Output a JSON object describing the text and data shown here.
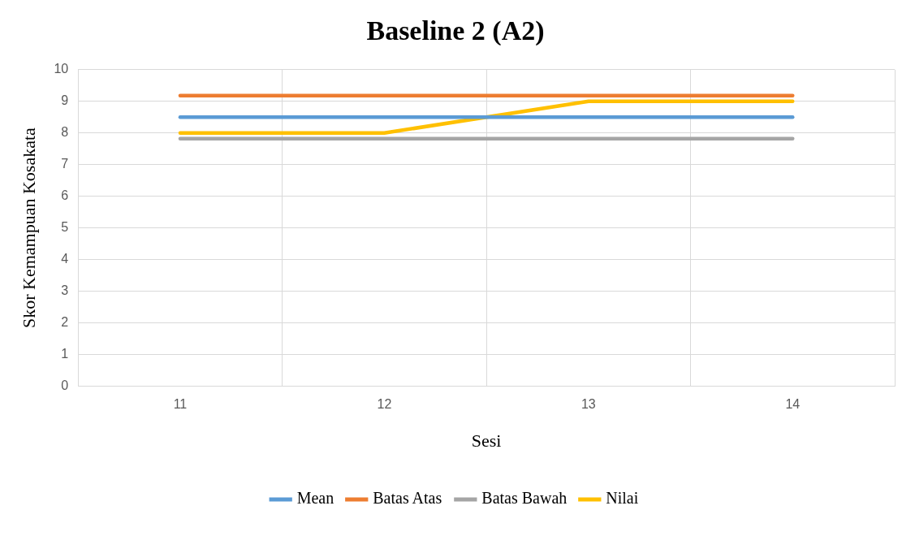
{
  "chart_data": {
    "type": "line",
    "title": "Baseline 2 (A2)",
    "xlabel": "Sesi",
    "ylabel": "Skor Kemampuan Kosakata",
    "categories": [
      "11",
      "12",
      "13",
      "14"
    ],
    "series": [
      {
        "name": "Mean",
        "color": "#5b9bd5",
        "values": [
          8.5,
          8.5,
          8.5,
          8.5
        ]
      },
      {
        "name": "Batas Atas",
        "color": "#ed7d31",
        "values": [
          9.18,
          9.18,
          9.18,
          9.18
        ]
      },
      {
        "name": "Batas Bawah",
        "color": "#a5a5a5",
        "values": [
          7.82,
          7.82,
          7.82,
          7.82
        ]
      },
      {
        "name": "Nilai",
        "color": "#ffc000",
        "values": [
          8,
          8,
          9,
          9
        ]
      }
    ],
    "ylim": [
      0,
      10
    ],
    "yticks": [
      0,
      1,
      2,
      3,
      4,
      5,
      6,
      7,
      8,
      9,
      10
    ],
    "grid": true,
    "legend": "bottom",
    "marker": "none",
    "line_style": "solid"
  }
}
